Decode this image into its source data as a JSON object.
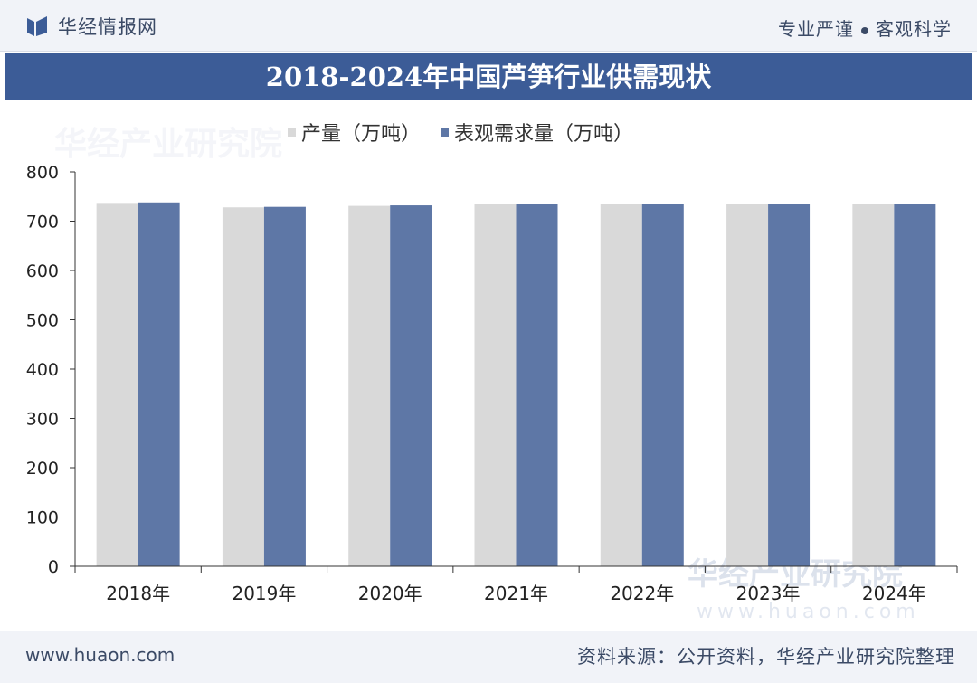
{
  "header": {
    "brand": "华经情报网",
    "slogan_left": "专业严谨",
    "slogan_right": "客观科学"
  },
  "chart_data": {
    "type": "bar",
    "title": "2018-2024年中国芦笋行业供需现状",
    "categories": [
      "2018年",
      "2019年",
      "2020年",
      "2021年",
      "2022年",
      "2023年",
      "2024年"
    ],
    "series": [
      {
        "name": "产量（万吨）",
        "color": "#d9d9d9",
        "values": [
          737,
          728,
          731,
          734,
          734,
          734,
          734
        ]
      },
      {
        "name": "表观需求量（万吨）",
        "color": "#5e77a6",
        "values": [
          738,
          729,
          732,
          735,
          735,
          735,
          735
        ]
      }
    ],
    "ylim": [
      0,
      800
    ],
    "yticks": [
      "0",
      "100",
      "200",
      "300",
      "400",
      "500",
      "600",
      "700",
      "800"
    ],
    "legend_position": "top-left",
    "grid": false
  },
  "watermark": {
    "text": "华经产业研究院",
    "url": "www.huaon.com"
  },
  "footer": {
    "website": "www.huaon.com",
    "source": "资料来源：公开资料，华经产业研究院整理"
  }
}
